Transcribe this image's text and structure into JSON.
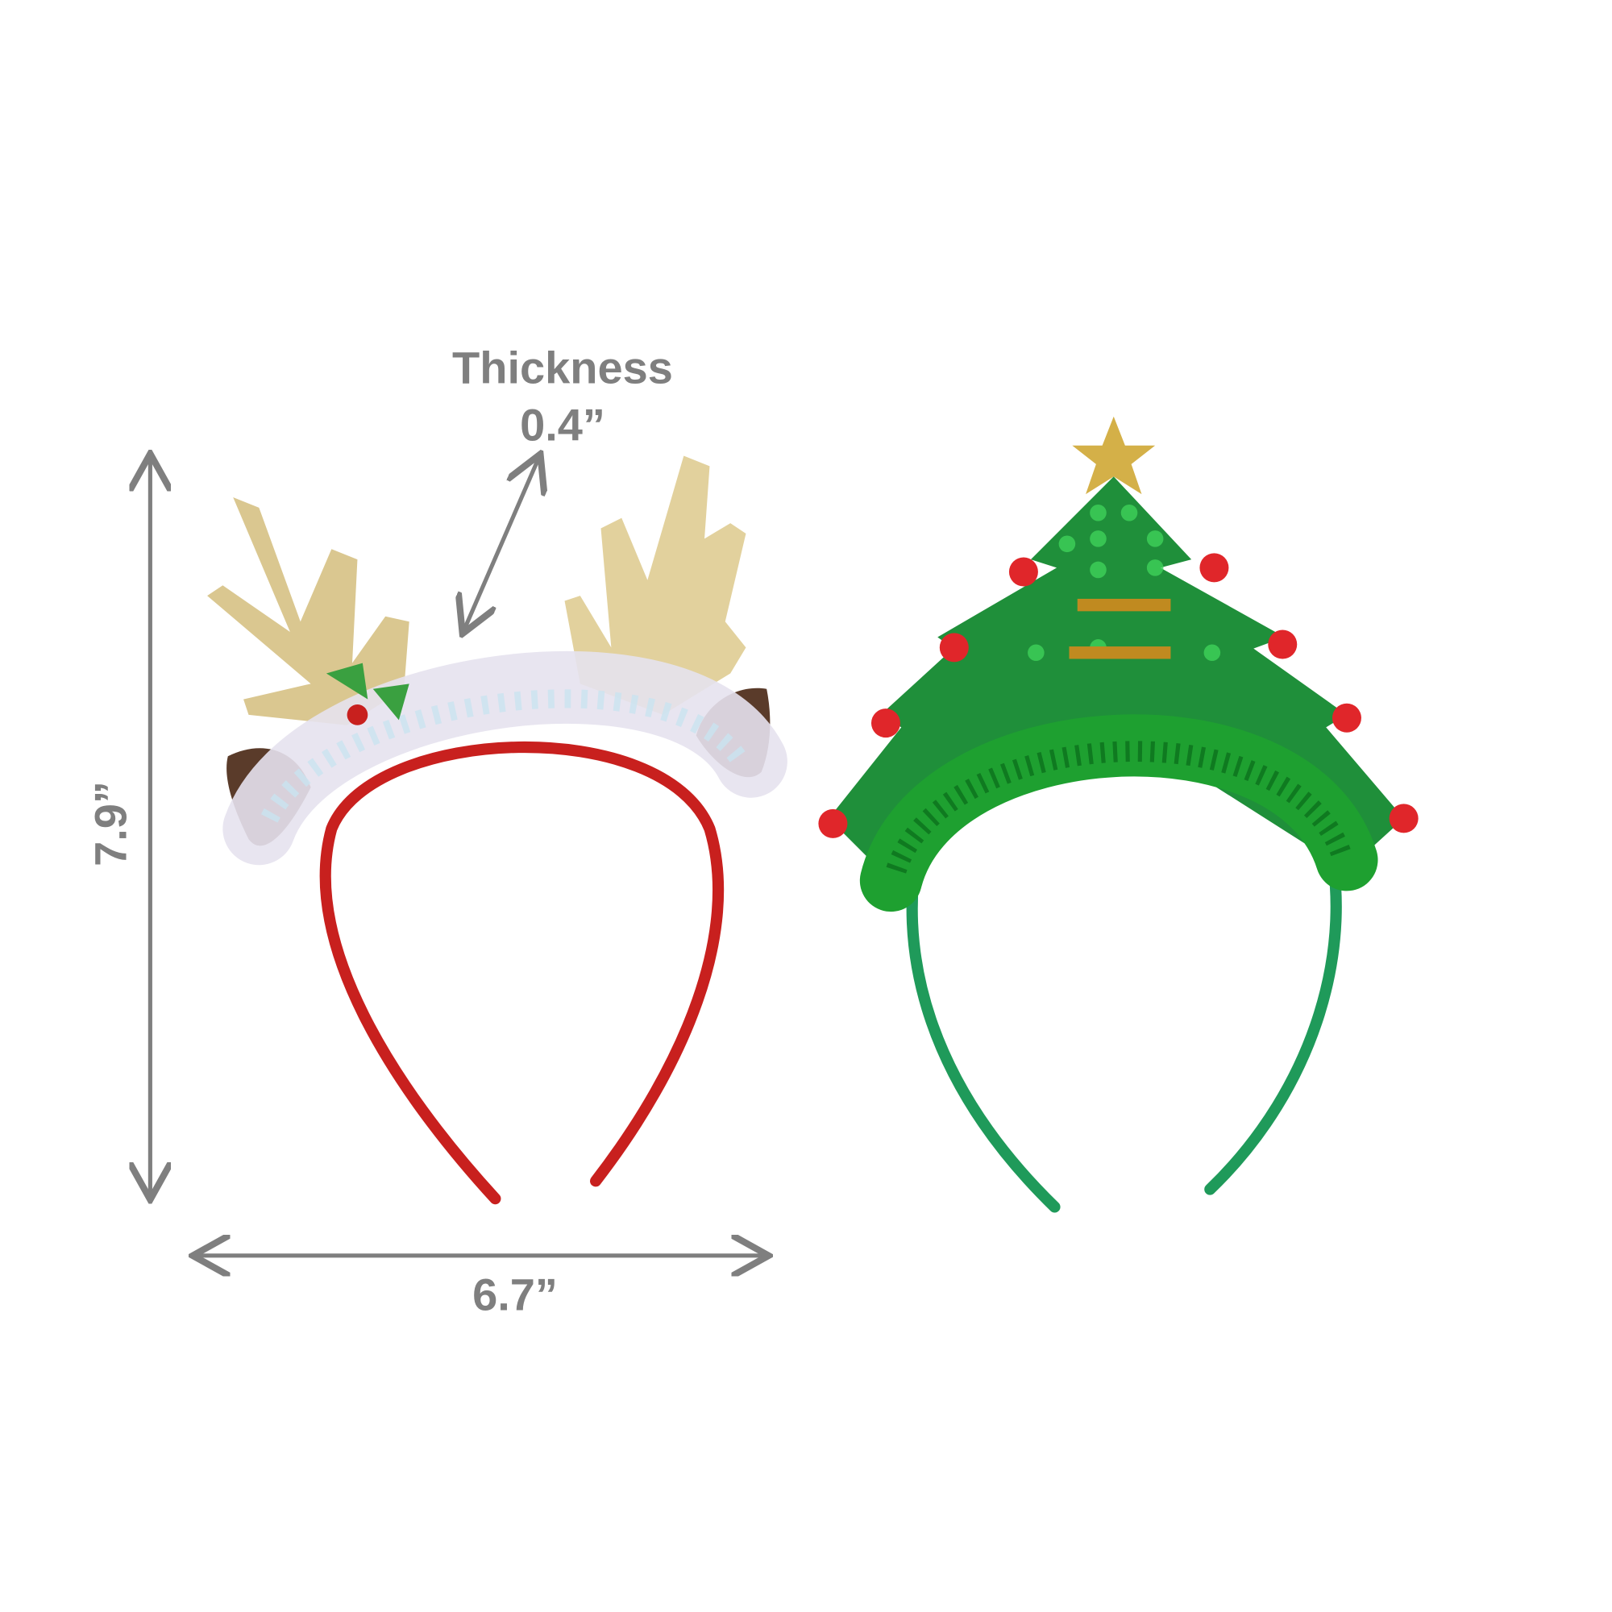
{
  "annotations": {
    "thickness_label": "Thickness",
    "thickness_value": "0.4”",
    "height_value": "7.9”",
    "width_value": "6.7”"
  },
  "colors": {
    "annotation": "#7f7f7f",
    "reindeer_band": "#c8201e",
    "antler_gold": "#d8c48a",
    "tree_green": "#1f8f3a",
    "tree_band": "#1f9a5a",
    "pompom": "#e0262a"
  },
  "products": [
    {
      "name": "reindeer-antler-headband"
    },
    {
      "name": "christmas-tree-headband"
    }
  ]
}
